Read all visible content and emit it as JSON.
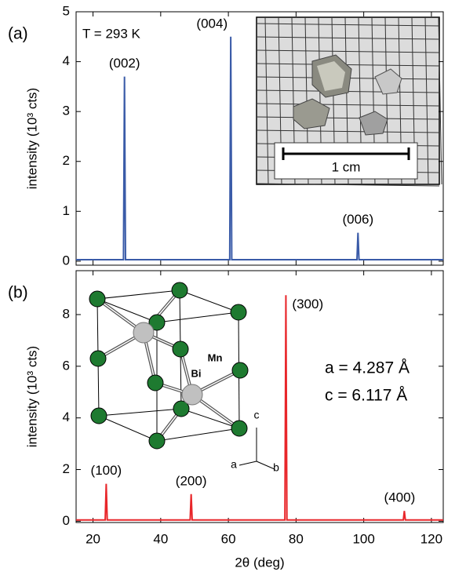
{
  "chart_data": [
    {
      "type": "line",
      "panel_label": "(a)",
      "annotations": [
        "T = 293 K"
      ],
      "y_label": "intensity (10³ cts)",
      "x": [
        15,
        29.0,
        29.3,
        29.6,
        60.4,
        60.7,
        61.0,
        98.0,
        98.3,
        98.6,
        123.5
      ],
      "series": [
        {
          "color": "#3a5ba8",
          "values": [
            0.03,
            0.03,
            3.7,
            0.03,
            0.03,
            4.5,
            0.03,
            0.03,
            0.57,
            0.03,
            0.03
          ]
        }
      ],
      "peak_labels": [
        "(002)",
        "(004)",
        "(006)"
      ],
      "xlim": [
        15,
        123.5
      ],
      "ylim": [
        -0.08,
        5
      ],
      "xticks": [
        20,
        40,
        60,
        80,
        100,
        120
      ],
      "yticks": [
        0,
        1,
        2,
        3,
        4,
        5
      ],
      "show_xtick_labels": false,
      "inset_labels": [
        "1 cm"
      ]
    },
    {
      "type": "line",
      "panel_label": "(b)",
      "annotations": [
        "a = 4.287 Å",
        "c = 6.117 Å"
      ],
      "x_label": "2θ (deg)",
      "y_label": "intensity (10³ cts)",
      "x": [
        15,
        23.6,
        23.9,
        24.2,
        48.7,
        49.0,
        49.3,
        76.7,
        77.0,
        77.3,
        111.7,
        112.0,
        112.3,
        123.5
      ],
      "series": [
        {
          "color": "#e8262a",
          "values": [
            0.05,
            0.05,
            1.45,
            0.05,
            0.05,
            1.05,
            0.05,
            0.05,
            8.75,
            0.05,
            0.05,
            0.4,
            0.05,
            0.05
          ]
        }
      ],
      "peak_labels": [
        "(100)",
        "(200)",
        "(300)",
        "(400)"
      ],
      "xlim": [
        15,
        123.5
      ],
      "ylim": [
        -0.05,
        9.7
      ],
      "xticks": [
        20,
        40,
        60,
        80,
        100,
        120
      ],
      "yticks": [
        0,
        2,
        4,
        6,
        8
      ],
      "show_xtick_labels": true,
      "inset_labels": [
        "Mn",
        "Bi",
        "c",
        "a",
        "b"
      ]
    }
  ]
}
